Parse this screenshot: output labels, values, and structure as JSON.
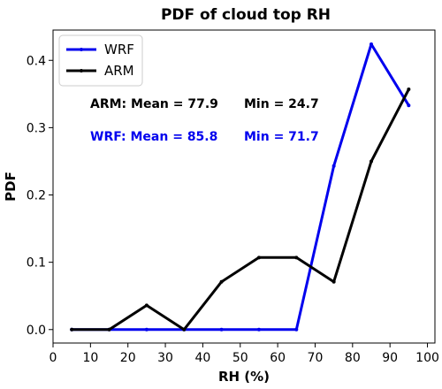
{
  "chart_data": {
    "type": "line",
    "title": "PDF of cloud top RH",
    "xlabel": "RH (%)",
    "ylabel": "PDF",
    "xlim": [
      0,
      102
    ],
    "ylim": [
      -0.02,
      0.445
    ],
    "xticks": [
      0,
      10,
      20,
      30,
      40,
      50,
      60,
      70,
      80,
      90,
      100
    ],
    "yticks": [
      0.0,
      0.1,
      0.2,
      0.3,
      0.4
    ],
    "ytick_labels": [
      "0.0",
      "0.1",
      "0.2",
      "0.3",
      "0.4"
    ],
    "grid": false,
    "legend_position": "top-left",
    "series": [
      {
        "name": "WRF",
        "color": "#0000ee",
        "x": [
          5,
          15,
          25,
          35,
          45,
          55,
          65,
          75,
          85,
          95
        ],
        "y": [
          0.0,
          0.0,
          0.0,
          0.0,
          0.0,
          0.0,
          0.0,
          0.243,
          0.424,
          0.333
        ]
      },
      {
        "name": "ARM",
        "color": "#000000",
        "x": [
          5,
          15,
          25,
          35,
          45,
          55,
          65,
          75,
          85,
          95
        ],
        "y": [
          0.0,
          0.0,
          0.036,
          0.0,
          0.071,
          0.107,
          0.107,
          0.071,
          0.25,
          0.357
        ]
      }
    ],
    "annotations": [
      {
        "id": "arm",
        "text_left": "ARM: Mean = 77.9",
        "text_right": "Min = 24.7",
        "color": "#000000"
      },
      {
        "id": "wrf",
        "text_left": "WRF: Mean = 85.8",
        "text_right": "Min = 71.7",
        "color": "#0000ee"
      }
    ]
  }
}
